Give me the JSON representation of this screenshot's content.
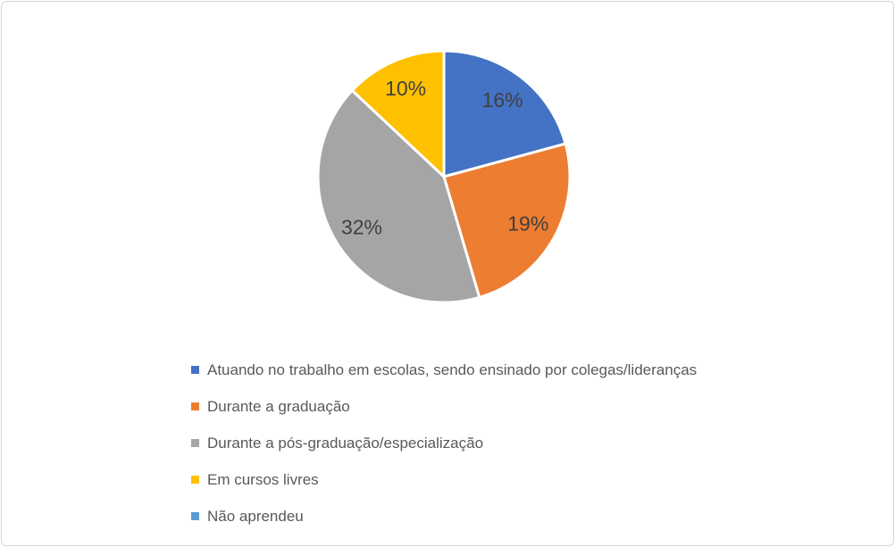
{
  "frame": {
    "background_color": "#ffffff",
    "border_color": "#d6d6d6"
  },
  "chart_data": {
    "type": "pie",
    "start_angle_deg": 0,
    "direction": "clockwise",
    "grid": false,
    "legend_position": "bottom-left",
    "slice_gap_color": "#ffffff",
    "label_color": "#404040",
    "legend_text_color": "#595959",
    "slices": [
      {
        "label": "Atuando no trabalho em escolas, sendo ensinado por colegas/lideranças",
        "value": 16,
        "display": "16%",
        "color": "#4472C4"
      },
      {
        "label": "Durante a graduação",
        "value": 19,
        "display": "19%",
        "color": "#ED7D31"
      },
      {
        "label": "Durante a pós-graduação/especialização",
        "value": 32,
        "display": "32%",
        "color": "#A5A5A5"
      },
      {
        "label": "Em cursos livres",
        "value": 10,
        "display": "10%",
        "color": "#FFC000"
      },
      {
        "label": "Não aprendeu",
        "value": 0,
        "display": "",
        "color": "#5B9BD5"
      }
    ]
  }
}
